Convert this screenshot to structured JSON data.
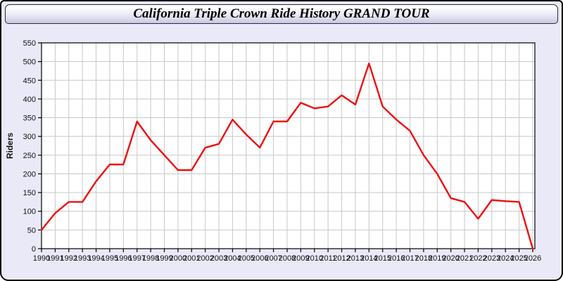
{
  "page": {
    "title": "California Triple Crown Ride History GRAND TOUR"
  },
  "colors": {
    "page_background": "#e9e9f7",
    "titlebar_gradient_top": "#ffffff",
    "titlebar_gradient_bottom": "#c9c9e2",
    "plot_background": "#ffffff",
    "gridline": "#c8c8c8",
    "axis": "#000000",
    "series_line": "#ee0f0f"
  },
  "chart_data": {
    "type": "line",
    "title": "California Triple Crown Ride History GRAND TOUR",
    "xlabel": "",
    "ylabel": "Riders",
    "grid": true,
    "legend": "none",
    "ylim": [
      0,
      550
    ],
    "yticks": [
      0,
      50,
      100,
      150,
      200,
      250,
      300,
      350,
      400,
      450,
      500,
      550
    ],
    "x": [
      1990,
      1991,
      1992,
      1993,
      1994,
      1995,
      1996,
      1997,
      1998,
      1999,
      2000,
      2001,
      2002,
      2003,
      2004,
      2005,
      2006,
      2007,
      2008,
      2009,
      2010,
      2011,
      2012,
      2013,
      2014,
      2015,
      2016,
      2017,
      2018,
      2019,
      2020,
      2021,
      2022,
      2023,
      2024,
      2025,
      2026
    ],
    "series": [
      {
        "name": "Riders",
        "values": [
          50,
          95,
          125,
          125,
          180,
          225,
          225,
          340,
          290,
          250,
          210,
          210,
          270,
          280,
          345,
          305,
          270,
          340,
          340,
          390,
          375,
          380,
          410,
          385,
          495,
          380,
          345,
          315,
          250,
          200,
          135,
          125,
          80,
          130,
          127,
          125,
          0
        ]
      }
    ]
  }
}
